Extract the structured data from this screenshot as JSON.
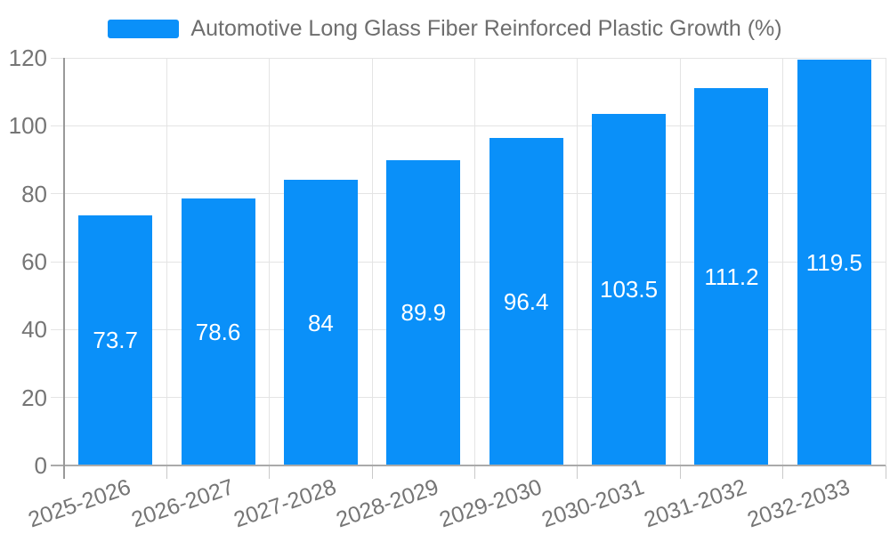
{
  "legend": {
    "label": "Automotive Long Glass Fiber Reinforced Plastic Growth (%)"
  },
  "chart_data": {
    "type": "bar",
    "title": "Automotive Long Glass Fiber Reinforced Plastic Growth (%)",
    "categories": [
      "2025-2026",
      "2026-2027",
      "2027-2028",
      "2028-2029",
      "2029-2030",
      "2030-2031",
      "2031-2032",
      "2032-2033"
    ],
    "values": [
      73.7,
      78.6,
      84,
      89.9,
      96.4,
      103.5,
      111.2,
      119.5
    ],
    "value_labels": [
      "73.7",
      "78.6",
      "84",
      "89.9",
      "96.4",
      "103.5",
      "111.2",
      "119.5"
    ],
    "xlabel": "",
    "ylabel": "",
    "ylim": [
      0,
      120
    ],
    "yticks": [
      0,
      20,
      40,
      60,
      80,
      100,
      120
    ],
    "grid": true,
    "legend_position": "top-center",
    "value_label_position": "inside-center",
    "x_label_rotation_deg": -19,
    "colors": {
      "bar": "#0A90F9",
      "value_label": "#FFFFFF",
      "grid": "#E4E4E4",
      "x_axis_line": "#AAAAAA",
      "y_axis_line": "#999999",
      "tick": "#C9C9C9",
      "axis_text": "#757575",
      "legend_text": "#6E6E6E"
    }
  }
}
